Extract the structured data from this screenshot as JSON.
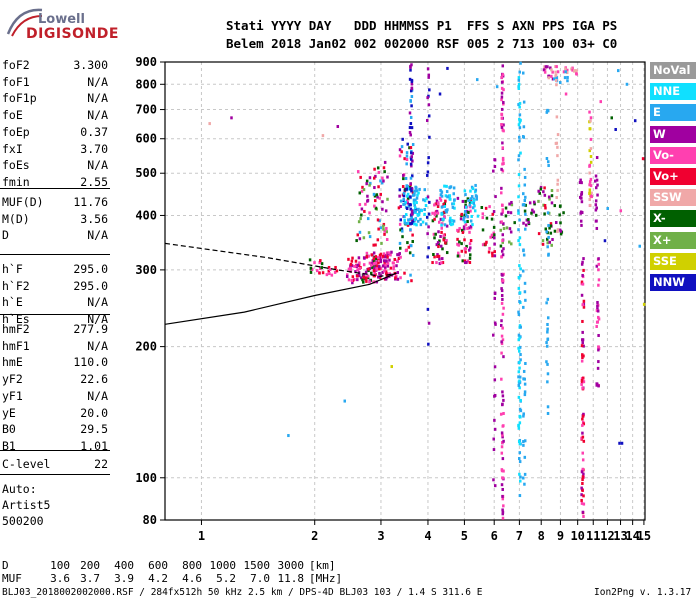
{
  "logo": {
    "top": "Lowell",
    "bottom": "DIGISONDE"
  },
  "header": {
    "line1": "Stati YYYY DAY   DDD HHMMSS P1  FFS S AXN PPS IGA PS",
    "line2": "Belem 2018 Jan02 002 002000 RSF 005 2 713 100 03+ C0"
  },
  "params_group1": [
    {
      "label": "foF2",
      "value": "3.300"
    },
    {
      "label": "foF1",
      "value": "N/A"
    },
    {
      "label": "foF1p",
      "value": "N/A"
    },
    {
      "label": "foE",
      "value": "N/A"
    },
    {
      "label": "foEp",
      "value": "0.37"
    },
    {
      "label": "fxI",
      "value": "3.70"
    },
    {
      "label": "foEs",
      "value": "N/A"
    },
    {
      "label": "fmin",
      "value": "2.55"
    }
  ],
  "params_group2": [
    {
      "label": "MUF(D)",
      "value": "11.76"
    },
    {
      "label": "M(D)",
      "value": "3.56"
    },
    {
      "label": "D",
      "value": "N/A"
    }
  ],
  "params_group3": [
    {
      "label": "h`F",
      "value": "295.0"
    },
    {
      "label": "h`F2",
      "value": "295.0"
    },
    {
      "label": "h`E",
      "value": "N/A"
    },
    {
      "label": "h`Es",
      "value": "N/A"
    }
  ],
  "params_group4": [
    {
      "label": "hmF2",
      "value": "277.9"
    },
    {
      "label": "hmF1",
      "value": "N/A"
    },
    {
      "label": "hmE",
      "value": "110.0"
    },
    {
      "label": "yF2",
      "value": "22.6"
    },
    {
      "label": "yF1",
      "value": "N/A"
    },
    {
      "label": "yE",
      "value": "20.0"
    },
    {
      "label": "B0",
      "value": "29.5"
    },
    {
      "label": "B1",
      "value": "1.01"
    }
  ],
  "params_group5": [
    {
      "label": "C-level",
      "value": "22"
    }
  ],
  "auto": {
    "line1": "Auto:",
    "line2": "Artist5",
    "line3": "500200"
  },
  "legend": [
    {
      "label": "NoVal",
      "color": "#9a9a9a"
    },
    {
      "label": "NNE",
      "color": "#10e0ff"
    },
    {
      "label": "E",
      "color": "#28a8f0"
    },
    {
      "label": "W",
      "color": "#a000a0"
    },
    {
      "label": "Vo-",
      "color": "#ff40b0"
    },
    {
      "label": "Vo+",
      "color": "#f00030"
    },
    {
      "label": "SSW",
      "color": "#f0a8a8"
    },
    {
      "label": "X-",
      "color": "#006000"
    },
    {
      "label": "X+",
      "color": "#70b048"
    },
    {
      "label": "SSE",
      "color": "#d0d000"
    },
    {
      "label": "NNW",
      "color": "#1010c0"
    }
  ],
  "footer": {
    "d_label": "D",
    "muf_label": "MUF",
    "d_values": [
      "100",
      "200",
      "400",
      "600",
      "800",
      "1000",
      "1500",
      "3000"
    ],
    "muf_values": [
      "3.6",
      "3.7",
      "3.9",
      "4.2",
      "4.6",
      "5.2",
      "7.0",
      "11.8"
    ],
    "d_unit": "[km]",
    "muf_unit": "[MHz]",
    "file_line": "BLJ03_2018002002000.RSF / 284fx512h 50 kHz 2.5 km / DPS-4D BLJ03 103 / 1.4 S 311.6 E",
    "version": "Ion2Png v. 1.3.17"
  },
  "chart_data": {
    "type": "scatter",
    "x_unit": "MHz",
    "y_unit": "km",
    "xlim": [
      0.8,
      15.1
    ],
    "ylim": [
      80,
      900
    ],
    "x_scale": "log",
    "y_scale": "log",
    "x_ticks": [
      1,
      2,
      3,
      4,
      5,
      6,
      7,
      8,
      9,
      10,
      11,
      12,
      13,
      14,
      15
    ],
    "y_ticks": [
      80,
      100,
      200,
      300,
      400,
      500,
      600,
      700,
      800,
      900
    ],
    "grid": true,
    "clusters": [
      {
        "f": 2.0,
        "h": [
          290,
          320
        ],
        "n": 14,
        "c": [
          "#f00030",
          "#ff40b0",
          "#006000"
        ]
      },
      {
        "f": 2.2,
        "h": [
          290,
          310
        ],
        "n": 10,
        "c": [
          "#f00030",
          "#ff40b0"
        ]
      },
      {
        "f": 2.55,
        "h": [
          280,
          320
        ],
        "n": 40,
        "c": [
          "#f00030",
          "#a000a0",
          "#ff40b0"
        ]
      },
      {
        "f": 2.8,
        "h": [
          280,
          330
        ],
        "n": 60,
        "c": [
          "#f00030",
          "#a000a0",
          "#ff40b0",
          "#006000"
        ]
      },
      {
        "f": 3.0,
        "h": [
          285,
          330
        ],
        "n": 55,
        "c": [
          "#f00030",
          "#a000a0",
          "#ff40b0"
        ]
      },
      {
        "f": 3.2,
        "h": [
          285,
          330
        ],
        "n": 35,
        "c": [
          "#f00030",
          "#ff40b0",
          "#a000a0"
        ]
      },
      {
        "f": 2.7,
        "h": [
          350,
          520
        ],
        "n": 30,
        "c": [
          "#f00030",
          "#ff40b0",
          "#006000",
          "#70b048",
          "#28a8f0",
          "#a000a0"
        ]
      },
      {
        "f": 3.0,
        "h": [
          340,
          540
        ],
        "n": 45,
        "c": [
          "#f00030",
          "#ff40b0",
          "#006000",
          "#70b048",
          "#28a8f0",
          "#a000a0"
        ]
      },
      {
        "f": 3.5,
        "h": [
          280,
          600
        ],
        "n": 80,
        "c": [
          "#f00030",
          "#ff40b0",
          "#a000a0",
          "#28a8f0",
          "#1010c0",
          "#006000"
        ]
      },
      {
        "f": 3.6,
        "h": [
          380,
          470
        ],
        "n": 50,
        "c": [
          "#28a8f0",
          "#10e0ff",
          "#1010c0"
        ]
      },
      {
        "f": 3.8,
        "h": [
          380,
          460
        ],
        "n": 35,
        "c": [
          "#28a8f0",
          "#10e0ff"
        ]
      },
      {
        "f": 4.3,
        "h": [
          310,
          440
        ],
        "n": 70,
        "c": [
          "#f00030",
          "#ff40b0",
          "#a000a0",
          "#006000"
        ]
      },
      {
        "f": 4.5,
        "h": [
          380,
          470
        ],
        "n": 45,
        "c": [
          "#28a8f0",
          "#10e0ff"
        ]
      },
      {
        "f": 5.0,
        "h": [
          310,
          440
        ],
        "n": 60,
        "c": [
          "#f00030",
          "#ff40b0",
          "#a000a0",
          "#006000"
        ]
      },
      {
        "f": 5.2,
        "h": [
          380,
          470
        ],
        "n": 35,
        "c": [
          "#28a8f0",
          "#10e0ff"
        ]
      },
      {
        "f": 5.8,
        "h": [
          320,
          420
        ],
        "n": 25,
        "c": [
          "#f00030",
          "#ff40b0",
          "#006000"
        ]
      },
      {
        "f": 6.5,
        "h": [
          340,
          430
        ],
        "n": 20,
        "c": [
          "#006000",
          "#70b048",
          "#a000a0"
        ]
      },
      {
        "f": 7.5,
        "h": [
          380,
          430
        ],
        "n": 15,
        "c": [
          "#a000a0",
          "#006000"
        ]
      },
      {
        "f": 8.2,
        "h": [
          340,
          470
        ],
        "n": 30,
        "c": [
          "#a000a0",
          "#f00030",
          "#006000",
          "#70b048"
        ]
      },
      {
        "f": 8.8,
        "h": [
          360,
          430
        ],
        "n": 15,
        "c": [
          "#a000a0",
          "#006000"
        ]
      },
      {
        "f": 8.5,
        "h": [
          820,
          880
        ],
        "n": 20,
        "c": [
          "#f0a8a8",
          "#ff40b0",
          "#a000a0"
        ]
      },
      {
        "f": 9.5,
        "h": [
          840,
          880
        ],
        "n": 12,
        "c": [
          "#f0a8a8",
          "#ff40b0"
        ]
      },
      {
        "f": 9.0,
        "h": [
          800,
          860
        ],
        "n": 8,
        "c": [
          "#28a8f0"
        ]
      }
    ],
    "columns": [
      {
        "f": 3.6,
        "h": [
          340,
          900
        ],
        "n": 40,
        "c": [
          "#1010c0",
          "#a000a0",
          "#28a8f0"
        ]
      },
      {
        "f": 4.0,
        "h": [
          180,
          900
        ],
        "n": 25,
        "c": [
          "#1010c0",
          "#a000a0"
        ]
      },
      {
        "f": 6.3,
        "h": [
          80,
          900
        ],
        "n": 110,
        "c": [
          "#a000a0",
          "#ff40b0"
        ]
      },
      {
        "f": 6.0,
        "h": [
          80,
          600
        ],
        "n": 25,
        "c": [
          "#a000a0"
        ]
      },
      {
        "f": 7.0,
        "h": [
          90,
          900
        ],
        "n": 90,
        "c": [
          "#28a8f0",
          "#10e0ff"
        ]
      },
      {
        "f": 7.2,
        "h": [
          90,
          900
        ],
        "n": 40,
        "c": [
          "#28a8f0"
        ]
      },
      {
        "f": 8.3,
        "h": [
          140,
          700
        ],
        "n": 30,
        "c": [
          "#28a8f0"
        ]
      },
      {
        "f": 8.8,
        "h": [
          350,
          900
        ],
        "n": 15,
        "c": [
          "#f0a8a8"
        ]
      },
      {
        "f": 10.3,
        "h": [
          80,
          320
        ],
        "n": 70,
        "c": [
          "#a000a0",
          "#ff40b0",
          "#f00030"
        ]
      },
      {
        "f": 10.2,
        "h": [
          360,
          500
        ],
        "n": 14,
        "c": [
          "#a000a0"
        ]
      },
      {
        "f": 10.8,
        "h": [
          420,
          700
        ],
        "n": 30,
        "c": [
          "#ff40b0",
          "#d0d000",
          "#f0a8a8"
        ]
      },
      {
        "f": 11.3,
        "h": [
          160,
          320
        ],
        "n": 30,
        "c": [
          "#a000a0",
          "#ff40b0"
        ]
      },
      {
        "f": 11.2,
        "h": [
          360,
          560
        ],
        "n": 14,
        "c": [
          "#a000a0"
        ]
      }
    ],
    "scatter": [
      {
        "f": 1.05,
        "h": 650,
        "c": "#f0a8a8"
      },
      {
        "f": 1.2,
        "h": 670,
        "c": "#a000a0"
      },
      {
        "f": 1.7,
        "h": 125,
        "c": "#28a8f0"
      },
      {
        "f": 2.1,
        "h": 610,
        "c": "#f0a8a8"
      },
      {
        "f": 2.3,
        "h": 640,
        "c": "#a000a0"
      },
      {
        "f": 2.4,
        "h": 150,
        "c": "#28a8f0"
      },
      {
        "f": 3.2,
        "h": 180,
        "c": "#d0d000"
      },
      {
        "f": 3.4,
        "h": 560,
        "c": "#f00030"
      },
      {
        "f": 4.5,
        "h": 870,
        "c": "#1010c0"
      },
      {
        "f": 4.3,
        "h": 760,
        "c": "#1010c0"
      },
      {
        "f": 5.4,
        "h": 820,
        "c": "#28a8f0"
      },
      {
        "f": 6.1,
        "h": 790,
        "c": "#28a8f0"
      },
      {
        "f": 9.3,
        "h": 760,
        "c": "#ff40b0"
      },
      {
        "f": 11.8,
        "h": 350,
        "c": "#1010c0"
      },
      {
        "f": 12.0,
        "h": 415,
        "c": "#28a8f0"
      },
      {
        "f": 12.6,
        "h": 630,
        "c": "#1010c0"
      },
      {
        "f": 12.9,
        "h": 120,
        "c": "#1010c0"
      },
      {
        "f": 13.1,
        "h": 120,
        "c": "#1010c0"
      },
      {
        "f": 12.8,
        "h": 860,
        "c": "#28a8f0"
      },
      {
        "f": 13.5,
        "h": 800,
        "c": "#28a8f0"
      },
      {
        "f": 14.2,
        "h": 660,
        "c": "#1010c0"
      },
      {
        "f": 14.6,
        "h": 340,
        "c": "#28a8f0"
      },
      {
        "f": 11.5,
        "h": 730,
        "c": "#ff40b0"
      },
      {
        "f": 12.3,
        "h": 670,
        "c": "#006000"
      },
      {
        "f": 14.9,
        "h": 540,
        "c": "#f00030"
      },
      {
        "f": 15.0,
        "h": 250,
        "c": "#d0d000"
      },
      {
        "f": 13.0,
        "h": 410,
        "c": "#ff40b0"
      },
      {
        "f": 9.8,
        "h": 860,
        "c": "#f0a8a8"
      }
    ],
    "profile_curve": [
      [
        0.8,
        225
      ],
      [
        1.3,
        240
      ],
      [
        2.0,
        262
      ],
      [
        2.8,
        278
      ],
      [
        3.3,
        295
      ]
    ],
    "dashed_curve": [
      [
        0.8,
        345
      ],
      [
        1.5,
        320
      ],
      [
        2.3,
        300
      ],
      [
        3.0,
        290
      ],
      [
        3.3,
        295
      ]
    ]
  }
}
